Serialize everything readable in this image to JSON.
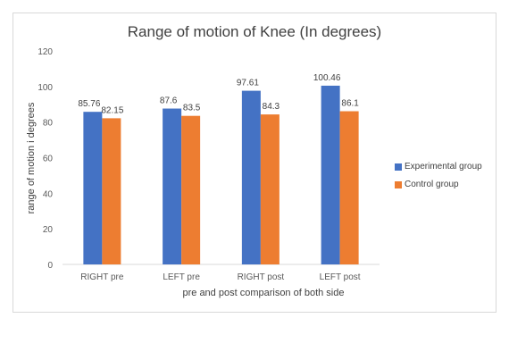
{
  "chart_data": {
    "type": "bar",
    "title": "Range of motion of Knee (In degrees)",
    "xlabel": "pre and post comparison of both side",
    "ylabel": "range of motion i degrees",
    "categories": [
      "RIGHT pre",
      "LEFT pre",
      "RIGHT post",
      "LEFT post"
    ],
    "series": [
      {
        "name": "Experimental group",
        "values": [
          85.76,
          87.6,
          97.61,
          100.46
        ],
        "labels": [
          "85.76",
          "87.6",
          "97.61",
          "100.46"
        ],
        "color": "#4472c4"
      },
      {
        "name": "Control group",
        "values": [
          82.15,
          83.5,
          84.3,
          86.1
        ],
        "labels": [
          "82.15",
          "83.5",
          "84.3",
          "86.1"
        ],
        "color": "#ed7d31"
      }
    ],
    "ylim": [
      0,
      120
    ],
    "yticks": [
      "0",
      "20",
      "40",
      "60",
      "80",
      "100",
      "120"
    ],
    "grid": false,
    "legend": "right"
  }
}
